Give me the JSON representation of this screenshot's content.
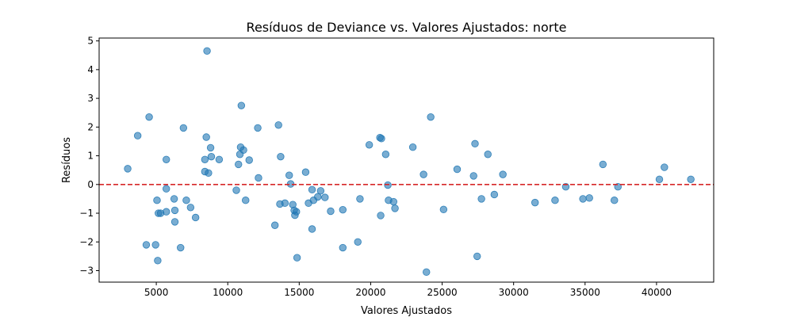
{
  "chart_data": {
    "type": "scatter",
    "title": "Resíduos de Deviance vs. Valores Ajustados: norte",
    "xlabel": "Valores Ajustados",
    "ylabel": "Resíduos",
    "xlim": [
      1000,
      44000
    ],
    "ylim": [
      -3.4,
      5.1
    ],
    "xticks": [
      5000,
      10000,
      15000,
      20000,
      25000,
      30000,
      35000,
      40000
    ],
    "yticks": [
      -3,
      -2,
      -1,
      0,
      1,
      2,
      3,
      4,
      5
    ],
    "grid": false,
    "point_color": "#1f77b4",
    "point_alpha": 0.6,
    "reference_line": {
      "y": 0,
      "color": "#d62728",
      "style": "dashed"
    },
    "points": [
      [
        3000,
        0.55
      ],
      [
        3700,
        1.7
      ],
      [
        4300,
        -2.1
      ],
      [
        4500,
        2.35
      ],
      [
        4950,
        -2.1
      ],
      [
        5050,
        -0.55
      ],
      [
        5100,
        -2.65
      ],
      [
        5150,
        -1.0
      ],
      [
        5300,
        -1.0
      ],
      [
        5700,
        0.87
      ],
      [
        5700,
        -0.15
      ],
      [
        5700,
        -0.95
      ],
      [
        6250,
        -0.5
      ],
      [
        6300,
        -0.9
      ],
      [
        6300,
        -1.3
      ],
      [
        6700,
        -2.2
      ],
      [
        6900,
        1.97
      ],
      [
        7100,
        -0.55
      ],
      [
        7400,
        -0.8
      ],
      [
        7750,
        -1.15
      ],
      [
        8400,
        0.87
      ],
      [
        8400,
        0.45
      ],
      [
        8500,
        1.65
      ],
      [
        8550,
        4.65
      ],
      [
        8650,
        0.4
      ],
      [
        8800,
        1.28
      ],
      [
        8850,
        0.97
      ],
      [
        9400,
        0.87
      ],
      [
        10600,
        -0.2
      ],
      [
        10750,
        0.7
      ],
      [
        10850,
        1.05
      ],
      [
        10900,
        1.3
      ],
      [
        10950,
        2.75
      ],
      [
        11100,
        1.2
      ],
      [
        11250,
        -0.55
      ],
      [
        11500,
        0.85
      ],
      [
        12100,
        1.97
      ],
      [
        12150,
        0.23
      ],
      [
        13300,
        -1.42
      ],
      [
        13550,
        2.07
      ],
      [
        13650,
        -0.68
      ],
      [
        13700,
        0.97
      ],
      [
        14000,
        -0.65
      ],
      [
        14300,
        0.32
      ],
      [
        14400,
        0.02
      ],
      [
        14550,
        -0.7
      ],
      [
        14650,
        -0.9
      ],
      [
        14700,
        -1.07
      ],
      [
        14800,
        -0.95
      ],
      [
        14850,
        -2.55
      ],
      [
        15450,
        0.43
      ],
      [
        15650,
        -0.65
      ],
      [
        15900,
        -0.18
      ],
      [
        15900,
        -1.55
      ],
      [
        16000,
        -0.55
      ],
      [
        16300,
        -0.43
      ],
      [
        16500,
        -0.22
      ],
      [
        16800,
        -0.45
      ],
      [
        17200,
        -0.93
      ],
      [
        18050,
        -2.2
      ],
      [
        18050,
        -0.88
      ],
      [
        19100,
        -2.0
      ],
      [
        19250,
        -0.5
      ],
      [
        19900,
        1.38
      ],
      [
        20650,
        1.63
      ],
      [
        20700,
        -1.08
      ],
      [
        20750,
        1.6
      ],
      [
        21050,
        1.05
      ],
      [
        21200,
        -0.02
      ],
      [
        21250,
        -0.55
      ],
      [
        21600,
        -0.6
      ],
      [
        21700,
        -0.83
      ],
      [
        22950,
        1.3
      ],
      [
        23700,
        0.35
      ],
      [
        23900,
        -3.05
      ],
      [
        24200,
        2.35
      ],
      [
        25100,
        -0.87
      ],
      [
        26050,
        0.53
      ],
      [
        27200,
        0.3
      ],
      [
        27300,
        1.42
      ],
      [
        27450,
        -2.5
      ],
      [
        27750,
        -0.5
      ],
      [
        28200,
        1.05
      ],
      [
        28650,
        -0.35
      ],
      [
        29250,
        0.35
      ],
      [
        31500,
        -0.63
      ],
      [
        32900,
        -0.55
      ],
      [
        33650,
        -0.08
      ],
      [
        34850,
        -0.5
      ],
      [
        35300,
        -0.47
      ],
      [
        36250,
        0.7
      ],
      [
        37050,
        -0.55
      ],
      [
        37300,
        -0.08
      ],
      [
        40200,
        0.18
      ],
      [
        40550,
        0.6
      ],
      [
        42400,
        0.18
      ]
    ]
  }
}
